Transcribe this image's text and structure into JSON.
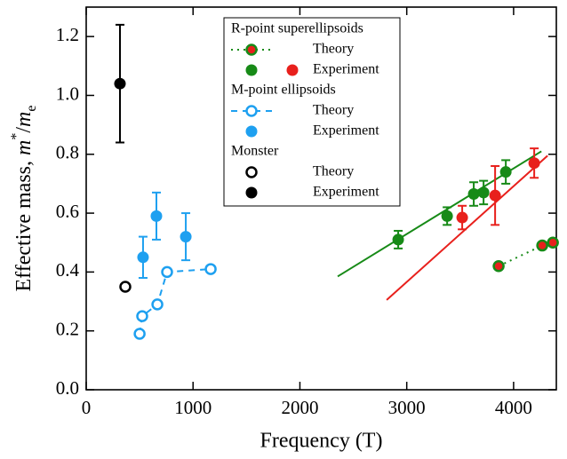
{
  "chart_data": {
    "type": "scatter",
    "xlabel": "Frequency (T)",
    "ylabel": [
      "Effective mass, ",
      "m",
      "*",
      "/",
      "m",
      "e"
    ],
    "xlim": [
      0,
      4400
    ],
    "ylim": [
      0,
      1.3
    ],
    "xticks": [
      0,
      1000,
      2000,
      3000,
      4000
    ],
    "yticks": [
      {
        "value": 0,
        "label": "0.0"
      },
      0.2,
      0.4,
      0.6,
      0.8,
      {
        "value": 1,
        "label": "1.0"
      },
      1.2
    ],
    "groups": [
      {
        "name": "R-point superellipsoids",
        "series": [
          {
            "name": "Theory",
            "marker": "open",
            "line": "dotted",
            "color": "#178a17",
            "fill": "#e8201c",
            "x": [
              3860,
              4268,
              4368
            ],
            "values": [
              0.42,
              0.49,
              0.5
            ]
          },
          {
            "name": "Experiment",
            "marker": "filled",
            "colors": [
              "#178a17",
              "#178a17",
              "#178a17",
              "#178a17",
              "#178a17",
              "#e8201c",
              "#e8201c",
              "#e8201c"
            ],
            "x": [
              2920,
              3378,
              3627,
              3719,
              3927,
              3519,
              3827,
              4193
            ],
            "values": [
              0.51,
              0.59,
              0.665,
              0.67,
              0.74,
              0.585,
              0.66,
              0.77
            ],
            "errors": [
              0.03,
              0.03,
              0.04,
              0.04,
              0.04,
              0.04,
              0.1,
              0.05
            ]
          }
        ]
      },
      {
        "name": "M-point ellipsoids",
        "series": [
          {
            "name": "Theory",
            "marker": "open",
            "line": "dashed",
            "color": "#1ea0f0",
            "fill": "#ffffff",
            "x": [
              500,
              524,
              666,
              757,
              1165
            ],
            "values": [
              0.19,
              0.25,
              0.29,
              0.4,
              0.41
            ]
          },
          {
            "name": "Experiment",
            "marker": "filled",
            "color": "#1ea0f0",
            "x": [
              532,
              657,
              932
            ],
            "values": [
              0.45,
              0.59,
              0.52
            ],
            "errors": [
              0.07,
              0.08,
              0.08
            ]
          }
        ]
      },
      {
        "name": "Monster",
        "series": [
          {
            "name": "Theory",
            "marker": "open",
            "color": "#000000",
            "fill": "#ffffff",
            "x": [
              366
            ],
            "values": [
              0.35
            ]
          },
          {
            "name": "Experiment",
            "marker": "filled",
            "color": "#000000",
            "x": [
              316
            ],
            "values": [
              1.04
            ],
            "errors": [
              0.2
            ]
          }
        ]
      }
    ],
    "fits": [
      {
        "color": "#178a17",
        "x": [
          2354,
          4260
        ],
        "values": [
          0.385,
          0.81
        ]
      },
      {
        "color": "#e8201c",
        "x": [
          2812,
          4318
        ],
        "values": [
          0.305,
          0.795
        ]
      }
    ]
  }
}
